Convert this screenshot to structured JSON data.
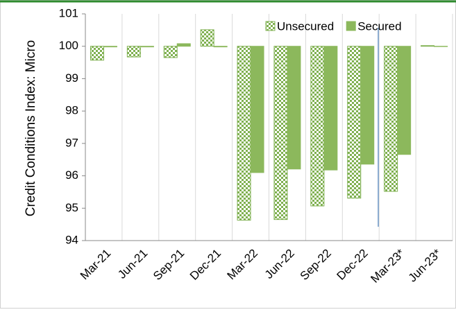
{
  "chart_data": {
    "type": "bar",
    "y_label": "Credit Conditions Index: Micro",
    "categories": [
      "Mar-21",
      "Jun-21",
      "Sep-21",
      "Dec-21",
      "Mar-22",
      "Jun-22",
      "Sep-22",
      "Dec-22",
      "Mar-23*",
      "Jun-23*"
    ],
    "series": [
      {
        "name": "Unsecured",
        "color": "#7fb050",
        "pattern": "checker",
        "values": [
          99.57,
          99.67,
          99.65,
          100.51,
          94.63,
          94.65,
          95.07,
          95.31,
          95.52,
          100.02
        ]
      },
      {
        "name": "Secured",
        "color": "#8cb85c",
        "values": [
          99.98,
          99.98,
          100.08,
          99.98,
          96.1,
          96.21,
          96.18,
          96.36,
          96.66,
          99.99
        ]
      }
    ],
    "base": 100,
    "ylim": [
      94,
      101
    ],
    "yticks": [
      94,
      95,
      96,
      97,
      98,
      99,
      100,
      101
    ],
    "grid": true,
    "legend": "top-right"
  }
}
